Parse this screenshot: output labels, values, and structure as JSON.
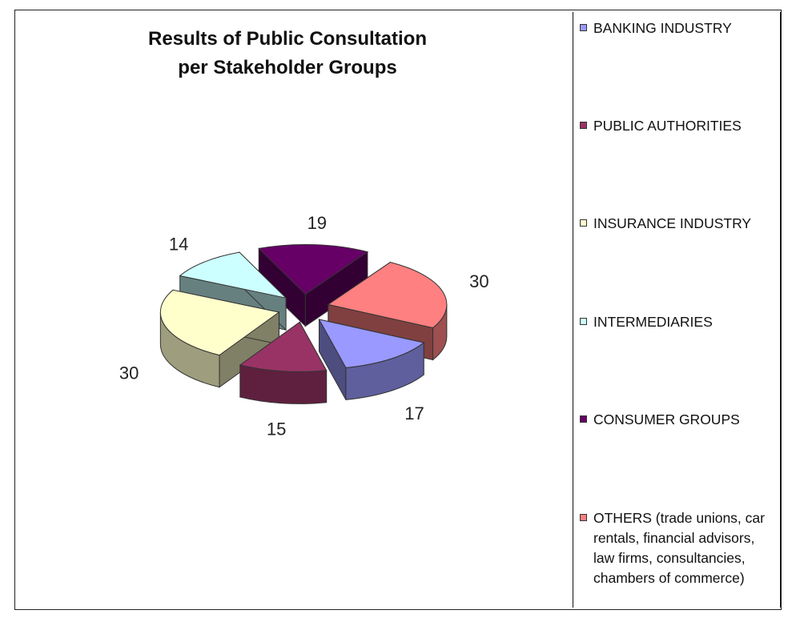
{
  "chart_data": {
    "type": "pie",
    "style": "3d-exploded",
    "title": [
      "Results of Public Consultation",
      "per Stakeholder Groups"
    ],
    "slices": [
      {
        "label": "BANKING INDUSTRY",
        "value": 17,
        "color": "#9999ff"
      },
      {
        "label": "PUBLIC AUTHORITIES",
        "value": 15,
        "color": "#993366"
      },
      {
        "label": "INSURANCE INDUSTRY",
        "value": 30,
        "color": "#ffffcc"
      },
      {
        "label": "INTERMEDIARIES",
        "value": 14,
        "color": "#ccffff"
      },
      {
        "label": "CONSUMER GROUPS",
        "value": 19,
        "color": "#660066"
      },
      {
        "label": "OTHERS (trade unions, car rentals, financial advisors, law firms, consultancies, chambers of commerce)",
        "value": 30,
        "color": "#ff8080"
      }
    ],
    "legend": {
      "position": "right"
    }
  }
}
